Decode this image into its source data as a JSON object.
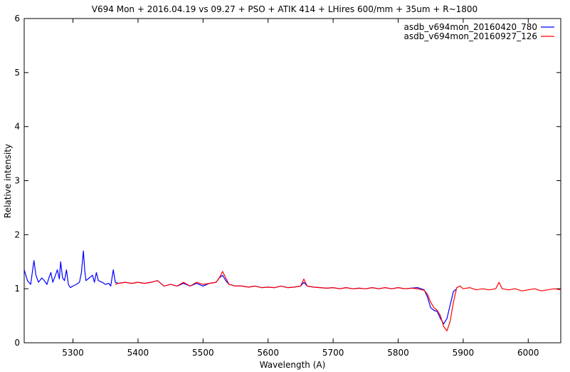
{
  "chart_data": {
    "type": "line",
    "title": "V694 Mon + 2016.04.19 vs 09.27 + PSO + ATIK 414 + LHires 600/mm + 35um + R~1800",
    "xlabel": "Wavelength (A)",
    "ylabel": "Relative intensity",
    "xlim": [
      5225,
      6050
    ],
    "ylim": [
      0,
      6
    ],
    "xticks": [
      5300,
      5400,
      5500,
      5600,
      5700,
      5800,
      5900,
      6000
    ],
    "yticks": [
      0,
      1,
      2,
      3,
      4,
      5,
      6
    ],
    "xtick_labels": [
      "5300",
      "5400",
      "5500",
      "5600",
      "5700",
      "5800",
      "5900",
      "6000"
    ],
    "ytick_labels": [
      "0",
      "1",
      "2",
      "3",
      "4",
      "5",
      "6"
    ],
    "grid": false,
    "legend_position": "top-right",
    "series": [
      {
        "name": "asdb_v694mon_20160420_780",
        "color": "#0000ff",
        "points": [
          [
            5225,
            1.35
          ],
          [
            5230,
            1.15
          ],
          [
            5235,
            1.08
          ],
          [
            5238,
            1.35
          ],
          [
            5240,
            1.52
          ],
          [
            5243,
            1.25
          ],
          [
            5247,
            1.12
          ],
          [
            5252,
            1.2
          ],
          [
            5256,
            1.15
          ],
          [
            5260,
            1.08
          ],
          [
            5263,
            1.2
          ],
          [
            5266,
            1.3
          ],
          [
            5269,
            1.12
          ],
          [
            5273,
            1.25
          ],
          [
            5276,
            1.35
          ],
          [
            5279,
            1.18
          ],
          [
            5281,
            1.5
          ],
          [
            5284,
            1.2
          ],
          [
            5287,
            1.15
          ],
          [
            5290,
            1.35
          ],
          [
            5293,
            1.08
          ],
          [
            5296,
            1.02
          ],
          [
            5300,
            1.05
          ],
          [
            5305,
            1.08
          ],
          [
            5310,
            1.12
          ],
          [
            5313,
            1.3
          ],
          [
            5316,
            1.7
          ],
          [
            5318,
            1.35
          ],
          [
            5320,
            1.15
          ],
          [
            5325,
            1.2
          ],
          [
            5330,
            1.25
          ],
          [
            5333,
            1.12
          ],
          [
            5336,
            1.3
          ],
          [
            5339,
            1.15
          ],
          [
            5345,
            1.12
          ],
          [
            5350,
            1.08
          ],
          [
            5355,
            1.1
          ],
          [
            5358,
            1.05
          ],
          [
            5362,
            1.35
          ],
          [
            5365,
            1.12
          ],
          [
            5370,
            1.1
          ],
          [
            5380,
            1.12
          ],
          [
            5390,
            1.1
          ],
          [
            5400,
            1.12
          ],
          [
            5410,
            1.1
          ],
          [
            5420,
            1.12
          ],
          [
            5430,
            1.15
          ],
          [
            5440,
            1.05
          ],
          [
            5450,
            1.08
          ],
          [
            5460,
            1.05
          ],
          [
            5470,
            1.1
          ],
          [
            5480,
            1.05
          ],
          [
            5490,
            1.1
          ],
          [
            5500,
            1.05
          ],
          [
            5510,
            1.1
          ],
          [
            5520,
            1.12
          ],
          [
            5525,
            1.2
          ],
          [
            5530,
            1.25
          ],
          [
            5535,
            1.15
          ],
          [
            5540,
            1.08
          ],
          [
            5550,
            1.05
          ],
          [
            5560,
            1.05
          ],
          [
            5570,
            1.03
          ],
          [
            5580,
            1.05
          ],
          [
            5590,
            1.02
          ],
          [
            5600,
            1.03
          ],
          [
            5610,
            1.02
          ],
          [
            5620,
            1.05
          ],
          [
            5630,
            1.02
          ],
          [
            5640,
            1.03
          ],
          [
            5650,
            1.05
          ],
          [
            5655,
            1.12
          ],
          [
            5660,
            1.05
          ],
          [
            5670,
            1.03
          ],
          [
            5680,
            1.02
          ],
          [
            5690,
            1.01
          ],
          [
            5700,
            1.02
          ],
          [
            5710,
            1.0
          ],
          [
            5720,
            1.02
          ],
          [
            5730,
            1.0
          ],
          [
            5740,
            1.01
          ],
          [
            5750,
            1.0
          ],
          [
            5760,
            1.02
          ],
          [
            5770,
            1.0
          ],
          [
            5780,
            1.02
          ],
          [
            5790,
            1.0
          ],
          [
            5800,
            1.02
          ],
          [
            5810,
            1.0
          ],
          [
            5820,
            1.01
          ],
          [
            5830,
            1.02
          ],
          [
            5840,
            0.98
          ],
          [
            5845,
            0.85
          ],
          [
            5850,
            0.65
          ],
          [
            5855,
            0.6
          ],
          [
            5860,
            0.58
          ],
          [
            5865,
            0.45
          ],
          [
            5870,
            0.35
          ],
          [
            5875,
            0.45
          ],
          [
            5880,
            0.7
          ],
          [
            5885,
            0.95
          ],
          [
            5890,
            1.0
          ]
        ]
      },
      {
        "name": "asdb_v694mon_20160927_126",
        "color": "#ff0000",
        "points": [
          [
            5365,
            1.08
          ],
          [
            5370,
            1.1
          ],
          [
            5380,
            1.12
          ],
          [
            5390,
            1.1
          ],
          [
            5400,
            1.12
          ],
          [
            5410,
            1.1
          ],
          [
            5420,
            1.12
          ],
          [
            5430,
            1.15
          ],
          [
            5440,
            1.05
          ],
          [
            5450,
            1.08
          ],
          [
            5460,
            1.05
          ],
          [
            5470,
            1.12
          ],
          [
            5480,
            1.05
          ],
          [
            5490,
            1.12
          ],
          [
            5500,
            1.08
          ],
          [
            5510,
            1.1
          ],
          [
            5520,
            1.12
          ],
          [
            5525,
            1.2
          ],
          [
            5530,
            1.32
          ],
          [
            5535,
            1.2
          ],
          [
            5540,
            1.08
          ],
          [
            5550,
            1.05
          ],
          [
            5560,
            1.05
          ],
          [
            5570,
            1.03
          ],
          [
            5580,
            1.05
          ],
          [
            5590,
            1.02
          ],
          [
            5600,
            1.03
          ],
          [
            5610,
            1.02
          ],
          [
            5620,
            1.05
          ],
          [
            5630,
            1.02
          ],
          [
            5640,
            1.03
          ],
          [
            5650,
            1.05
          ],
          [
            5655,
            1.18
          ],
          [
            5660,
            1.05
          ],
          [
            5670,
            1.03
          ],
          [
            5680,
            1.02
          ],
          [
            5690,
            1.01
          ],
          [
            5700,
            1.02
          ],
          [
            5710,
            1.0
          ],
          [
            5720,
            1.02
          ],
          [
            5730,
            1.0
          ],
          [
            5740,
            1.01
          ],
          [
            5750,
            1.0
          ],
          [
            5760,
            1.02
          ],
          [
            5770,
            1.0
          ],
          [
            5780,
            1.02
          ],
          [
            5790,
            1.0
          ],
          [
            5800,
            1.02
          ],
          [
            5810,
            1.0
          ],
          [
            5820,
            1.01
          ],
          [
            5830,
            1.0
          ],
          [
            5840,
            0.97
          ],
          [
            5845,
            0.9
          ],
          [
            5850,
            0.75
          ],
          [
            5855,
            0.65
          ],
          [
            5860,
            0.6
          ],
          [
            5865,
            0.5
          ],
          [
            5870,
            0.3
          ],
          [
            5875,
            0.22
          ],
          [
            5880,
            0.4
          ],
          [
            5885,
            0.75
          ],
          [
            5890,
            1.02
          ],
          [
            5895,
            1.05
          ],
          [
            5900,
            1.0
          ],
          [
            5910,
            1.02
          ],
          [
            5920,
            0.98
          ],
          [
            5930,
            1.0
          ],
          [
            5940,
            0.98
          ],
          [
            5950,
            1.0
          ],
          [
            5955,
            1.12
          ],
          [
            5960,
            1.0
          ],
          [
            5970,
            0.98
          ],
          [
            5980,
            1.0
          ],
          [
            5990,
            0.96
          ],
          [
            6000,
            0.98
          ],
          [
            6010,
            1.0
          ],
          [
            6020,
            0.96
          ],
          [
            6030,
            0.98
          ],
          [
            6040,
            1.0
          ],
          [
            6050,
            0.98
          ]
        ]
      }
    ]
  }
}
